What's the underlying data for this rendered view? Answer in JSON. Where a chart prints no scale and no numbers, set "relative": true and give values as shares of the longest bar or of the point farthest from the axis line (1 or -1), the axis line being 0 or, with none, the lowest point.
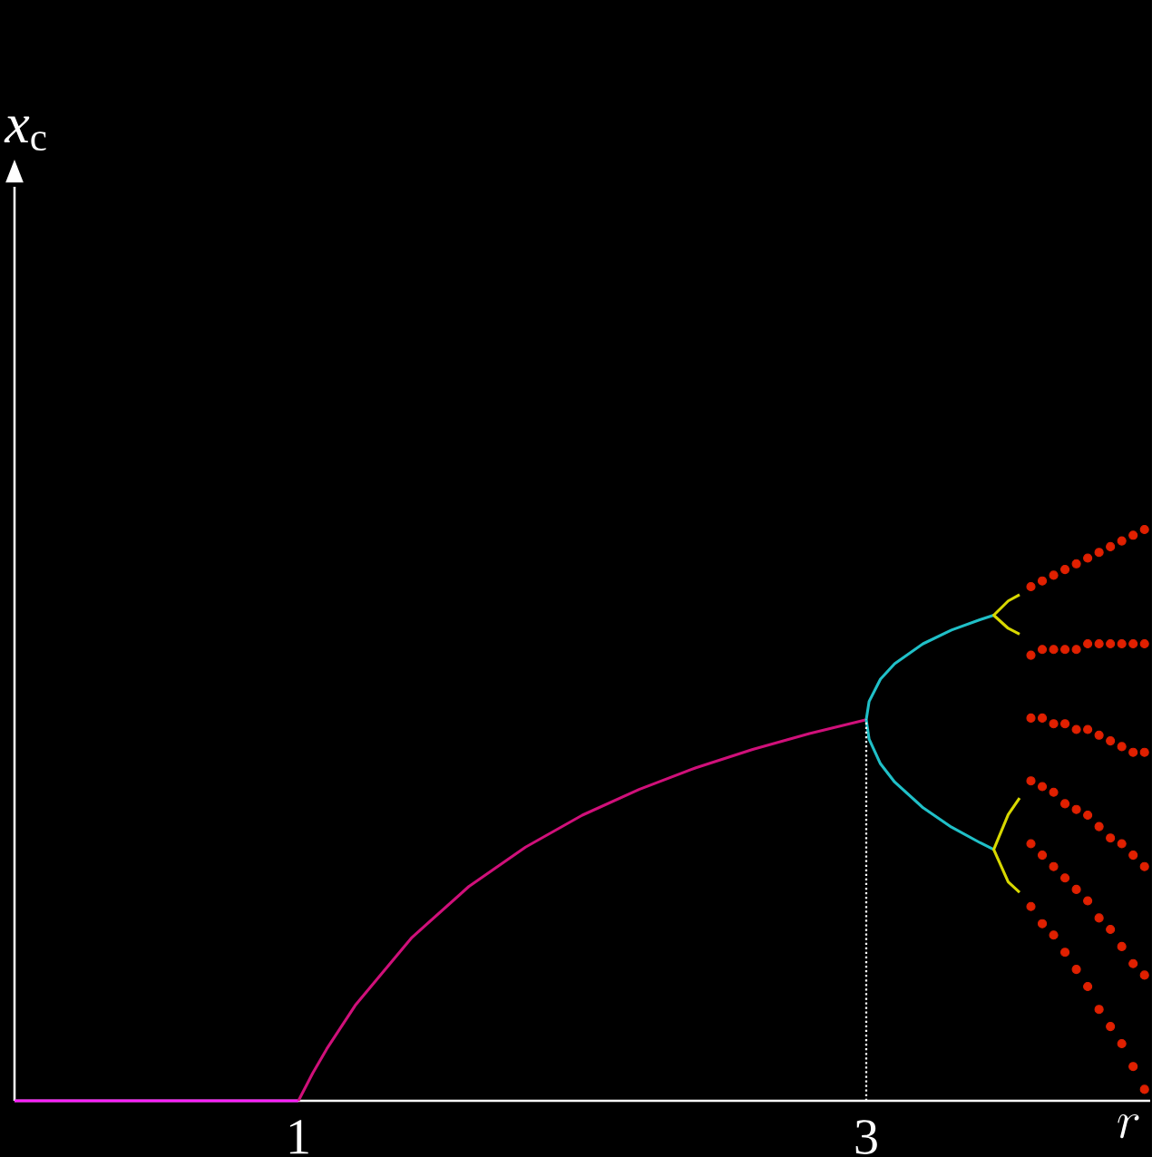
{
  "chart_data": {
    "type": "line",
    "xlabel": "r",
    "annotations": [
      "*x*$_{c}$"
    ],
    "relative": true,
    "xlim": [
      0,
      4
    ],
    "xticks": [
      1,
      3
    ],
    "grid": false,
    "ref_lines": [
      {
        "axis": "x",
        "value": 3,
        "color": "#ffffff",
        "line_style": "dotted"
      }
    ],
    "series": [
      {
        "color": "#ff20ff",
        "x": [
          0,
          1
        ],
        "values": [
          0,
          0
        ]
      },
      {
        "color": "#d0107a",
        "x": [
          1,
          1.05,
          1.1,
          1.2,
          1.4,
          1.6,
          1.8,
          2,
          2.2,
          2.4,
          2.6,
          2.8,
          3
        ],
        "values": [
          0,
          0.048,
          0.091,
          0.167,
          0.286,
          0.375,
          0.444,
          0.5,
          0.545,
          0.583,
          0.615,
          0.643,
          0.667
        ]
      },
      {
        "color": "#20c0c8",
        "x": [
          3.449,
          3.4,
          3.3,
          3.2,
          3.1,
          3.05,
          3.01,
          3,
          3.01,
          3.05,
          3.1,
          3.2,
          3.3,
          3.4,
          3.449
        ],
        "values": [
          0.85,
          0.842,
          0.824,
          0.8,
          0.765,
          0.738,
          0.699,
          0.667,
          0.633,
          0.59,
          0.558,
          0.513,
          0.479,
          0.452,
          0.44
        ]
      },
      {
        "color": "#d8d800",
        "x": [
          3.54,
          3.5,
          3.449,
          3.5,
          3.54
        ],
        "values": [
          0.886,
          0.875,
          0.85,
          0.827,
          0.817
        ]
      },
      {
        "color": "#d8d800",
        "x": [
          3.54,
          3.5,
          3.449,
          3.5,
          3.54
        ],
        "values": [
          0.53,
          0.501,
          0.44,
          0.383,
          0.365
        ]
      },
      {
        "type": "scatter",
        "color": "#e02000",
        "x": [
          3.58,
          3.58,
          3.58,
          3.58,
          3.58,
          3.58,
          3.62,
          3.62,
          3.62,
          3.62,
          3.62,
          3.62,
          3.66,
          3.66,
          3.66,
          3.66,
          3.66,
          3.66,
          3.7,
          3.7,
          3.7,
          3.7,
          3.7,
          3.7,
          3.74,
          3.74,
          3.74,
          3.74,
          3.74,
          3.74,
          3.78,
          3.78,
          3.78,
          3.78,
          3.78,
          3.78,
          3.82,
          3.82,
          3.82,
          3.82,
          3.82,
          3.82,
          3.86,
          3.86,
          3.86,
          3.86,
          3.86,
          3.86,
          3.9,
          3.9,
          3.9,
          3.9,
          3.9,
          3.9,
          3.94,
          3.94,
          3.94,
          3.94,
          3.94,
          3.94,
          3.98,
          3.98,
          3.98,
          3.98,
          3.98,
          3.98
        ],
        "values": [
          0.34,
          0.45,
          0.56,
          0.67,
          0.78,
          0.9,
          0.31,
          0.43,
          0.55,
          0.67,
          0.79,
          0.91,
          0.29,
          0.41,
          0.54,
          0.66,
          0.79,
          0.92,
          0.26,
          0.39,
          0.52,
          0.66,
          0.79,
          0.93,
          0.23,
          0.37,
          0.51,
          0.65,
          0.79,
          0.94,
          0.2,
          0.35,
          0.5,
          0.65,
          0.8,
          0.95,
          0.16,
          0.32,
          0.48,
          0.64,
          0.8,
          0.96,
          0.13,
          0.3,
          0.46,
          0.63,
          0.8,
          0.97,
          0.1,
          0.27,
          0.45,
          0.62,
          0.8,
          0.98,
          0.06,
          0.24,
          0.43,
          0.61,
          0.8,
          0.99,
          0.02,
          0.22,
          0.41,
          0.61,
          0.8,
          1
        ]
      }
    ]
  }
}
